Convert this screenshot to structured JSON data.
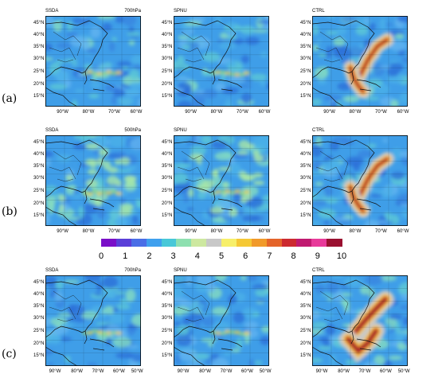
{
  "rows": [
    {
      "label": "(a)",
      "panels": [
        {
          "title": "SSDA",
          "level": "700hPa",
          "field": "low"
        },
        {
          "title": "SPNU",
          "level": "",
          "field": "low"
        },
        {
          "title": "CTRL",
          "level": "",
          "field": "storm"
        }
      ],
      "lat_labels": [
        "45°N",
        "40°N",
        "35°N",
        "30°N",
        "25°N",
        "20°N",
        "15°N"
      ],
      "lon_labels": [
        "90°W",
        "80°W",
        "70°W",
        "60°W"
      ]
    },
    {
      "label": "(b)",
      "panels": [
        {
          "title": "SSDA",
          "level": "500hPa",
          "field": "mid"
        },
        {
          "title": "SPNU",
          "level": "",
          "field": "mid"
        },
        {
          "title": "CTRL",
          "level": "",
          "field": "storm"
        }
      ],
      "lat_labels": [
        "45°N",
        "40°N",
        "35°N",
        "30°N",
        "25°N",
        "20°N",
        "15°N"
      ],
      "lon_labels": [
        "90°W",
        "80°W",
        "70°W",
        "60°W"
      ]
    },
    {
      "label": "(c)",
      "panels": [
        {
          "title": "SSDA",
          "level": "700hPa",
          "field": "low"
        },
        {
          "title": "SPNU",
          "level": "",
          "field": "low"
        },
        {
          "title": "CTRL",
          "level": "",
          "field": "storm_strong"
        }
      ],
      "lat_labels": [
        "45°N",
        "40°N",
        "35°N",
        "30°N",
        "25°N",
        "20°N",
        "15°N"
      ],
      "lon_labels": [
        "90°W",
        "80°W",
        "70°W",
        "60°W",
        "50°W"
      ]
    }
  ],
  "colorbar": {
    "labels": [
      "0",
      "1",
      "2",
      "3",
      "4",
      "5",
      "6",
      "7",
      "8",
      "9",
      "10"
    ],
    "colors": [
      "#7a0fc8",
      "#5a3fd8",
      "#4a6ee6",
      "#3fa0ee",
      "#48c8d8",
      "#8ee0b0",
      "#cde8a0",
      "#c8c8c8",
      "#f7ef6a",
      "#f5c835",
      "#f19a2a",
      "#e4642a",
      "#cc2a30",
      "#c01a70",
      "#e83a9a",
      "#9a1030"
    ]
  }
}
